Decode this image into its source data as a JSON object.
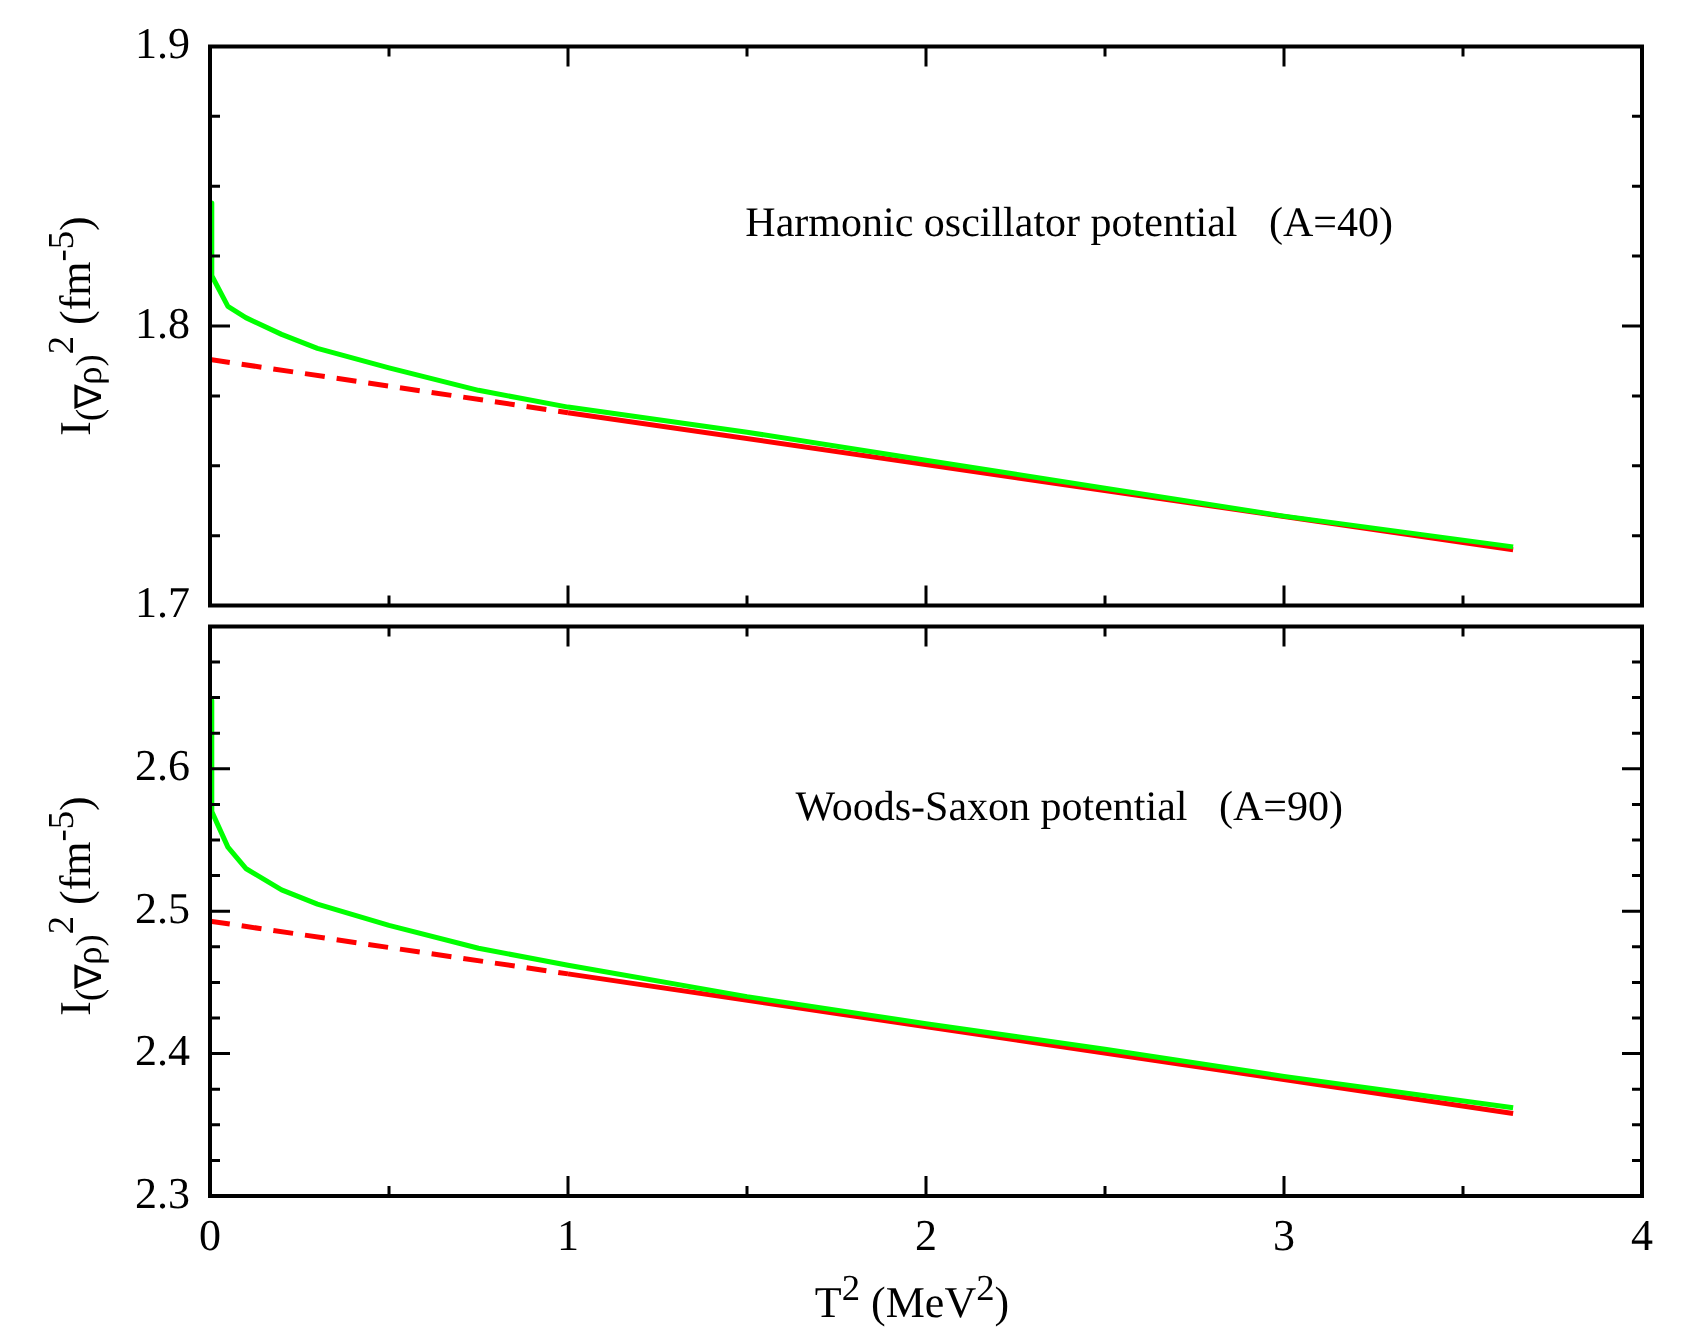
{
  "chart_data": [
    {
      "type": "line",
      "annotations": [
        "Harmonic oscillator potential   (A=40)"
      ],
      "ylabel": "I$_{(∇ρ)}$$^{2}$  (fm$^{-5}$)",
      "xlim": [
        0,
        4
      ],
      "ylim": [
        1.7,
        1.9
      ],
      "tick_labels": "y",
      "xticks": [
        {
          "value": 0,
          "label": null
        },
        {
          "value": 0.5,
          "label": null
        },
        {
          "value": 1,
          "label": null
        },
        {
          "value": 1.5,
          "label": null
        },
        {
          "value": 2,
          "label": null
        },
        {
          "value": 2.5,
          "label": null
        },
        {
          "value": 3,
          "label": null
        },
        {
          "value": 3.5,
          "label": null
        },
        {
          "value": 4,
          "label": null
        }
      ],
      "yticks": [
        1.7,
        {
          "value": 1.725,
          "label": null
        },
        {
          "value": 1.75,
          "label": null
        },
        {
          "value": 1.775,
          "label": null
        },
        1.8,
        {
          "value": 1.825,
          "label": null
        },
        {
          "value": 1.85,
          "label": null
        },
        {
          "value": 1.875,
          "label": null
        },
        1.9
      ],
      "series": [
        {
          "color": "#00ff00",
          "line_style": "solid",
          "x": [
            0,
            0.005,
            0.05,
            0.1,
            0.2,
            0.3,
            0.5,
            0.75,
            1,
            1.5,
            2,
            2.5,
            3,
            3.64
          ],
          "values": [
            1.844,
            1.818,
            1.807,
            1.803,
            1.797,
            1.792,
            1.785,
            1.777,
            1.771,
            1.762,
            1.752,
            1.742,
            1.732,
            1.721
          ]
        },
        {
          "color": "#ff0000",
          "line_style": "dashed",
          "x": [
            0,
            1
          ],
          "values": [
            1.788,
            1.769
          ]
        },
        {
          "color": "#ff0000",
          "line_style": "solid",
          "x": [
            1,
            3.64
          ],
          "values": [
            1.769,
            1.72
          ]
        }
      ]
    },
    {
      "type": "line",
      "annotations": [
        "Woods-Saxon potential   (A=90)"
      ],
      "ylabel": "I$_{(∇ρ)}$$^{2}$  (fm$^{-5}$)",
      "xlabel": "T$^{2}$  (MeV$^{2}$)",
      "xlim": [
        0,
        4
      ],
      "ylim": [
        2.3,
        2.7
      ],
      "xticks": [
        0,
        {
          "value": 0.5,
          "label": null
        },
        1,
        {
          "value": 1.5,
          "label": null
        },
        2,
        {
          "value": 2.5,
          "label": null
        },
        3,
        {
          "value": 3.5,
          "label": null
        },
        4
      ],
      "yticks": [
        2.3,
        {
          "value": 2.325,
          "label": null
        },
        {
          "value": 2.35,
          "label": null
        },
        {
          "value": 2.375,
          "label": null
        },
        2.4,
        {
          "value": 2.425,
          "label": null
        },
        {
          "value": 2.45,
          "label": null
        },
        {
          "value": 2.475,
          "label": null
        },
        2.5,
        {
          "value": 2.525,
          "label": null
        },
        {
          "value": 2.55,
          "label": null
        },
        {
          "value": 2.575,
          "label": null
        },
        2.6,
        {
          "value": 2.625,
          "label": null
        },
        {
          "value": 2.65,
          "label": null
        },
        {
          "value": 2.675,
          "label": null
        },
        {
          "value": 2.7,
          "label": null
        }
      ],
      "series": [
        {
          "color": "#00ff00",
          "line_style": "solid",
          "x": [
            0,
            0.005,
            0.05,
            0.1,
            0.2,
            0.3,
            0.5,
            0.75,
            1,
            1.5,
            2,
            2.5,
            3,
            3.64
          ],
          "values": [
            2.648,
            2.57,
            2.545,
            2.53,
            2.515,
            2.505,
            2.49,
            2.474,
            2.462,
            2.44,
            2.421,
            2.403,
            2.384,
            2.362
          ]
        },
        {
          "color": "#ff0000",
          "line_style": "dashed",
          "x": [
            0,
            1
          ],
          "values": [
            2.493,
            2.456
          ]
        },
        {
          "color": "#ff0000",
          "line_style": "solid",
          "x": [
            1,
            3.64
          ],
          "values": [
            2.456,
            2.358
          ]
        }
      ]
    }
  ]
}
